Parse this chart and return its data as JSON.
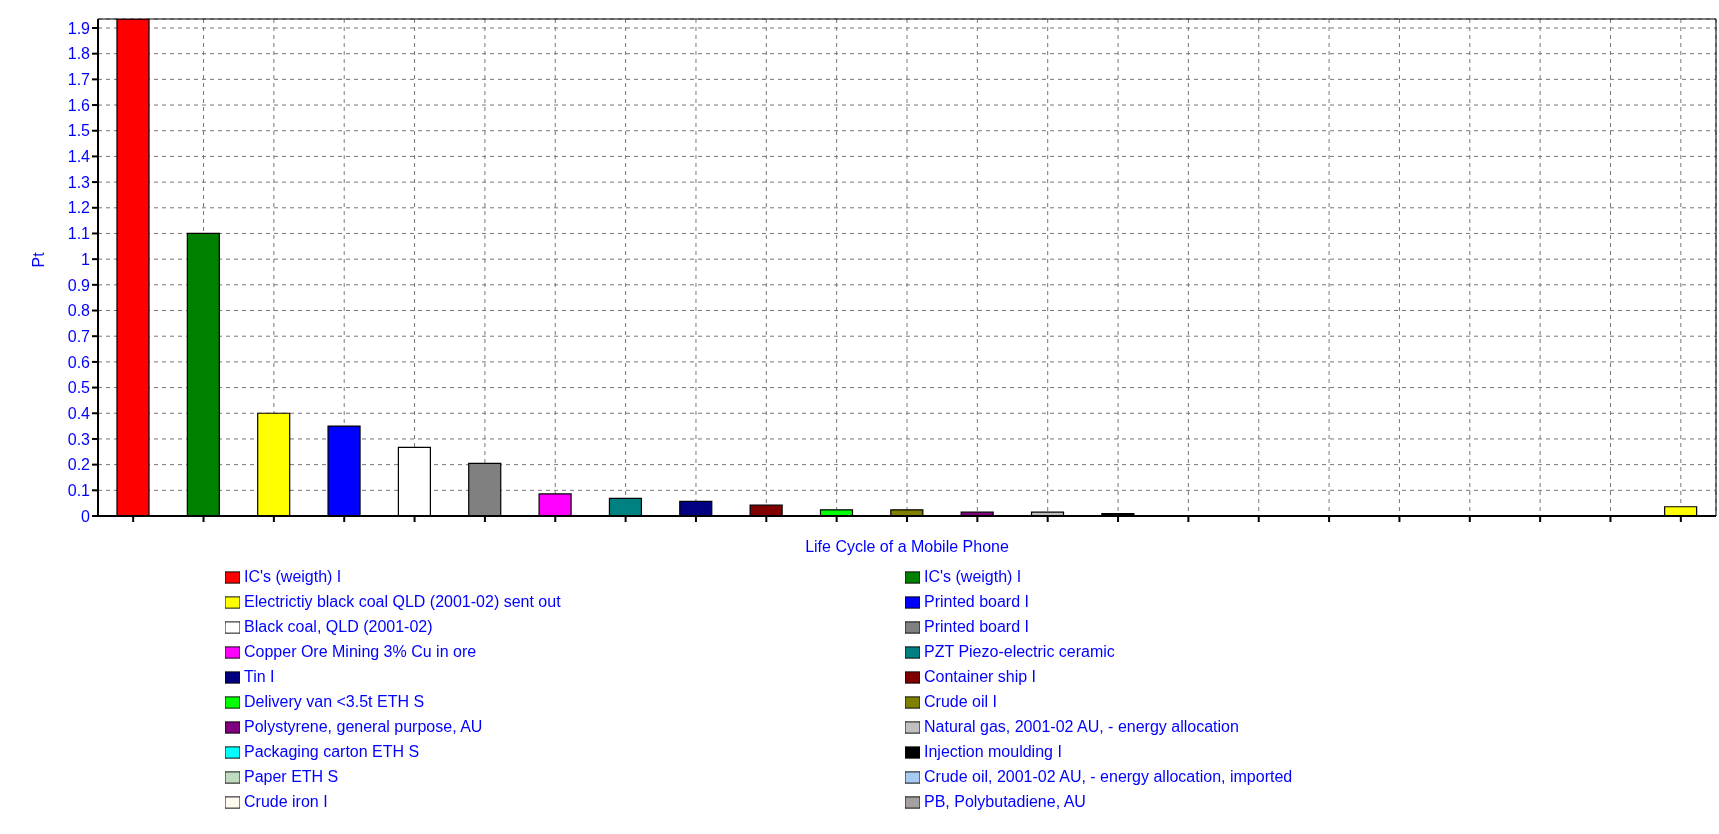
{
  "chart_data": {
    "type": "bar",
    "xlabel": "Life Cycle of a Mobile Phone",
    "ylabel": "Pt",
    "stacked": true,
    "grid": true,
    "legend": "bottom",
    "categories": [
      null,
      null,
      null,
      null,
      null,
      null,
      null,
      null,
      null,
      null,
      null,
      null,
      null,
      null,
      null,
      null,
      null,
      null,
      null,
      null,
      null,
      null,
      null
    ],
    "ylim": [
      0,
      1.935
    ],
    "yticks": [
      0,
      0.1,
      0.2,
      0.3,
      0.4,
      0.5,
      0.6,
      0.7,
      0.8,
      0.9,
      1,
      1.1,
      1.2,
      1.3,
      1.4,
      1.5,
      1.6,
      1.7,
      1.8,
      1.9
    ],
    "series": [
      {
        "name": "IC's (weigth) I",
        "color": "#ff0000",
        "values": [
          1.935,
          null,
          null,
          null,
          null,
          null,
          null,
          null,
          null,
          null,
          null,
          null,
          null,
          null,
          null,
          null,
          null,
          null,
          null,
          null,
          null,
          null,
          null
        ]
      },
      {
        "name": "IC's (weigth) I",
        "color": "#008000",
        "values": [
          null,
          1.1,
          null,
          null,
          null,
          null,
          null,
          null,
          null,
          null,
          null,
          null,
          null,
          null,
          null,
          null,
          null,
          null,
          null,
          null,
          null,
          null,
          null
        ]
      },
      {
        "name": "Electrictiy black coal QLD (2001-02) sent out",
        "color": "#ffff00",
        "values": [
          null,
          null,
          0.4,
          null,
          null,
          null,
          null,
          null,
          null,
          null,
          null,
          null,
          null,
          null,
          null,
          null,
          null,
          null,
          null,
          null,
          null,
          null,
          null
        ]
      },
      {
        "name": "Printed board I",
        "color": "#0000ff",
        "values": [
          null,
          null,
          null,
          0.35,
          null,
          null,
          null,
          null,
          null,
          null,
          null,
          null,
          null,
          null,
          null,
          null,
          null,
          null,
          null,
          null,
          null,
          null,
          null
        ]
      },
      {
        "name": "Black coal, QLD (2001-02)",
        "color": "#ffffff",
        "values": [
          null,
          null,
          null,
          null,
          0.267,
          null,
          null,
          null,
          null,
          null,
          null,
          null,
          null,
          null,
          null,
          null,
          null,
          null,
          null,
          null,
          null,
          null,
          null
        ]
      },
      {
        "name": "Printed board I",
        "color": "#808080",
        "values": [
          null,
          null,
          null,
          null,
          null,
          0.205,
          null,
          null,
          null,
          null,
          null,
          null,
          null,
          null,
          null,
          null,
          null,
          null,
          null,
          null,
          null,
          null,
          null
        ]
      },
      {
        "name": "Copper Ore Mining 3% Cu in ore",
        "color": "#ff00ff",
        "values": [
          null,
          null,
          null,
          null,
          null,
          null,
          0.086,
          null,
          null,
          null,
          null,
          null,
          null,
          null,
          null,
          null,
          null,
          null,
          null,
          null,
          null,
          null,
          null
        ]
      },
      {
        "name": "PZT Piezo-electric ceramic",
        "color": "#008080",
        "values": [
          null,
          null,
          null,
          null,
          null,
          null,
          null,
          0.069,
          null,
          null,
          null,
          null,
          null,
          null,
          null,
          null,
          null,
          null,
          null,
          null,
          null,
          null,
          null
        ]
      },
      {
        "name": "Tin I",
        "color": "#000080",
        "values": [
          null,
          null,
          null,
          null,
          null,
          null,
          null,
          null,
          0.057,
          null,
          null,
          null,
          null,
          null,
          null,
          null,
          null,
          null,
          null,
          null,
          null,
          null,
          null
        ]
      },
      {
        "name": "Container ship I",
        "color": "#800000",
        "values": [
          null,
          null,
          null,
          null,
          null,
          null,
          null,
          null,
          null,
          0.042,
          null,
          null,
          null,
          null,
          null,
          null,
          null,
          null,
          null,
          null,
          null,
          null,
          null
        ]
      },
      {
        "name": "Delivery van <3.5t ETH S",
        "color": "#00ff00",
        "values": [
          null,
          null,
          null,
          null,
          null,
          null,
          null,
          null,
          null,
          null,
          0.024,
          null,
          null,
          null,
          null,
          null,
          null,
          null,
          null,
          null,
          null,
          null,
          null
        ]
      },
      {
        "name": "Crude oil I",
        "color": "#808000",
        "values": [
          null,
          null,
          null,
          null,
          null,
          null,
          null,
          null,
          null,
          null,
          null,
          0.024,
          null,
          null,
          null,
          null,
          null,
          null,
          null,
          null,
          null,
          null,
          null
        ]
      },
      {
        "name": "Polystyrene, general purpose, AU",
        "color": "#800080",
        "values": [
          null,
          null,
          null,
          null,
          null,
          null,
          null,
          null,
          null,
          null,
          null,
          null,
          0.015,
          null,
          null,
          null,
          null,
          null,
          null,
          null,
          null,
          null,
          null
        ]
      },
      {
        "name": "Natural gas, 2001-02 AU, - energy allocation",
        "color": "#c0c0c0",
        "values": [
          null,
          null,
          null,
          null,
          null,
          null,
          null,
          null,
          null,
          null,
          null,
          null,
          null,
          0.015,
          null,
          null,
          null,
          null,
          null,
          null,
          null,
          null,
          null
        ]
      },
      {
        "name": "Packaging carton ETH S",
        "color": "#00ffff",
        "values": [
          null,
          null,
          null,
          null,
          null,
          null,
          null,
          null,
          null,
          null,
          null,
          null,
          null,
          null,
          null,
          0,
          null,
          null,
          null,
          null,
          null,
          null,
          null
        ]
      },
      {
        "name": "Injection moulding I",
        "color": "#000000",
        "values": [
          null,
          null,
          null,
          null,
          null,
          null,
          null,
          null,
          null,
          null,
          null,
          null,
          null,
          null,
          0.009,
          null,
          null,
          null,
          null,
          null,
          null,
          null,
          null
        ]
      },
      {
        "name": "Paper ETH S",
        "color": "#c0dcc0",
        "values": [
          null,
          null,
          null,
          null,
          null,
          null,
          null,
          null,
          null,
          null,
          null,
          null,
          null,
          null,
          null,
          null,
          0,
          null,
          null,
          null,
          null,
          null,
          null
        ]
      },
      {
        "name": "Crude oil, 2001-02 AU, - energy allocation, imported",
        "color": "#a6caf0",
        "values": [
          null,
          null,
          null,
          null,
          null,
          null,
          null,
          null,
          null,
          null,
          null,
          null,
          null,
          null,
          null,
          null,
          null,
          0,
          null,
          null,
          null,
          null,
          null
        ]
      },
      {
        "name": "Crude iron I",
        "color": "#fffbf0",
        "values": [
          null,
          null,
          null,
          null,
          null,
          null,
          null,
          null,
          null,
          null,
          null,
          null,
          null,
          null,
          null,
          null,
          null,
          null,
          0,
          null,
          null,
          null,
          null
        ]
      },
      {
        "name": "PB, Polybutadiene,  AU",
        "color": "#a4a0a0",
        "values": [
          null,
          null,
          null,
          null,
          null,
          null,
          null,
          null,
          null,
          null,
          null,
          null,
          null,
          null,
          null,
          null,
          null,
          null,
          null,
          0,
          null,
          null,
          null
        ]
      },
      {
        "color": "#ffff00",
        "values": [
          null,
          null,
          null,
          null,
          null,
          null,
          null,
          null,
          null,
          null,
          null,
          null,
          null,
          null,
          null,
          null,
          null,
          null,
          null,
          null,
          null,
          null,
          0.036
        ]
      }
    ]
  }
}
